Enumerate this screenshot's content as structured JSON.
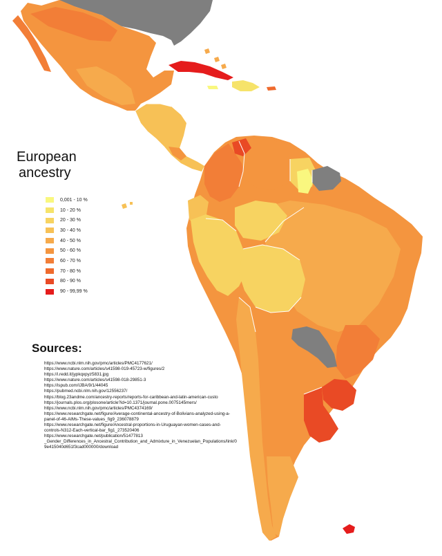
{
  "map": {
    "title_line1": "European",
    "title_line2": "ancestry",
    "no_data_color": "#7f7f7f",
    "ocean_color": "#ffffff",
    "border_color": "#ffffff"
  },
  "legend": [
    {
      "label": "0,001 - 10 %",
      "color": "#f9f77f"
    },
    {
      "label": "10 - 20 %",
      "color": "#f6e36a"
    },
    {
      "label": "20 - 30 %",
      "color": "#f7d361"
    },
    {
      "label": "30 - 40 %",
      "color": "#f7c156"
    },
    {
      "label": "40 - 50 %",
      "color": "#f6aa4c"
    },
    {
      "label": "50 - 60 %",
      "color": "#f4953f"
    },
    {
      "label": "60 - 70 %",
      "color": "#f27e37"
    },
    {
      "label": "70 - 80 %",
      "color": "#ef6a2d"
    },
    {
      "label": "80 - 90 %",
      "color": "#e94a25"
    },
    {
      "label": "90 - 99,99 %",
      "color": "#e51c1c"
    }
  ],
  "sources": {
    "heading": "Sources:",
    "lines": [
      "https://www.ncbi.nlm.nih.gov/pmc/articles/PMC4177621/",
      "https://www.nature.com/articles/s41598-019-45723-w/figures/2",
      "https://i.redd.it/jypkqxpyz5831.jpg",
      "https://www.nature.com/articles/s41598-018-29851-3",
      "https://ispub.com/IJBA/9/1/44045",
      "https://pubmed.ncbi.nlm.nih.gov/12556237/",
      "https://blog.23andme.com/ancestry-reports/reports-for-caribbean-and-latin-american-custo",
      "https://journals.plos.org/plosone/article?id=10.1371/journal.pone.0075145mers/",
      "https://www.ncbi.nlm.nih.gov/pmc/articles/PMC4374169/",
      "https://www.researchgate.net/figure/Average-continental-ancestry-of-Bolivians-analyzed-using-a-",
      "panel-of-46-AIMs-These-values_fig9_236078879",
      "https://www.researchgate.net/figure/Ancestral-proportions-in-Uruguayan-women-cases-and-",
      "controls-N312-Each-vertical-bar_fig1_273520406",
      "https://www.researchgate.net/publication/51477813",
      "_Gender_Differences_in_Ancestral_Contribution_and_Admixture_in_Venezuelan_Populations/link/0",
      "9e415040d651f3cad000000/download"
    ]
  }
}
